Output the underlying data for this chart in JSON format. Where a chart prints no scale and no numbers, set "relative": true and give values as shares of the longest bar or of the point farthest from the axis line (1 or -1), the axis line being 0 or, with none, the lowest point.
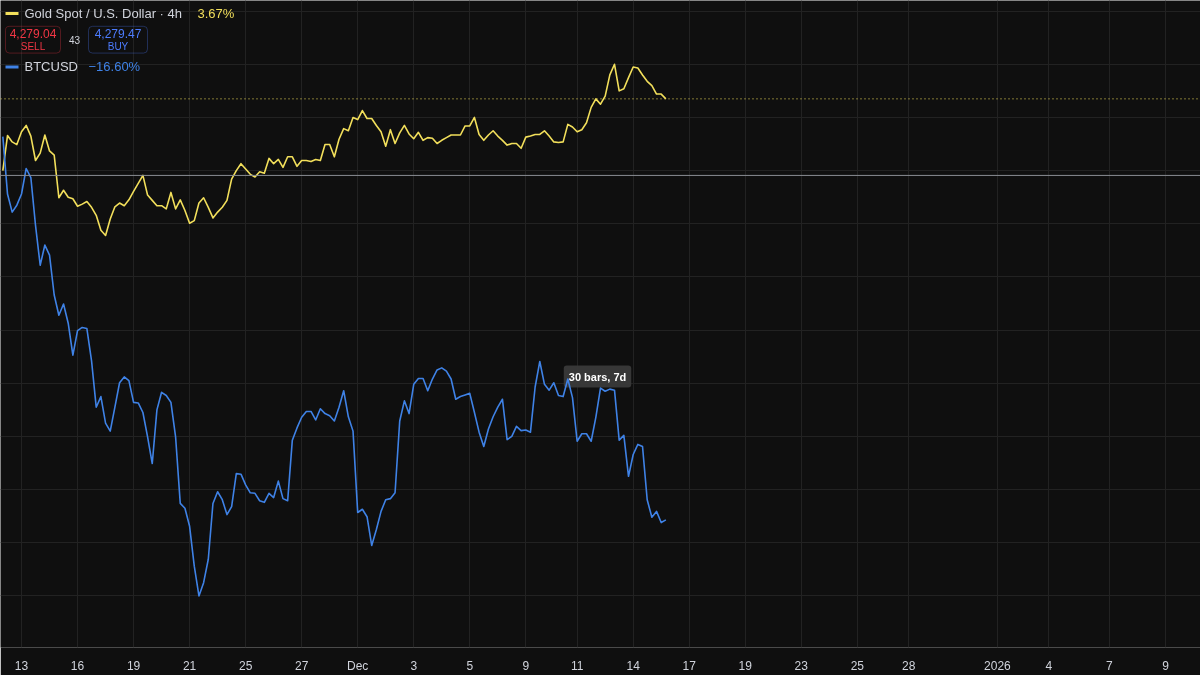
{
  "chart_data": {
    "type": "line",
    "relative": true,
    "grid": true,
    "legend": "top left",
    "categories": [
      null,
      null,
      null,
      null,
      "13",
      null,
      null,
      null,
      null,
      null,
      null,
      null,
      null,
      null,
      null,
      null,
      "16",
      null,
      null,
      null,
      null,
      null,
      null,
      null,
      null,
      null,
      null,
      null,
      "19",
      null,
      null,
      null,
      null,
      null,
      null,
      null,
      null,
      null,
      null,
      null,
      "21",
      null,
      null,
      null,
      null,
      null,
      null,
      null,
      null,
      null,
      null,
      null,
      "25",
      null,
      null,
      null,
      null,
      null,
      null,
      null,
      null,
      null,
      null,
      null,
      "27",
      null,
      null,
      null,
      null,
      null,
      null,
      null,
      null,
      null,
      null,
      null,
      "Dec",
      null,
      null,
      null,
      null,
      null,
      null,
      null,
      null,
      null,
      null,
      null,
      "3",
      null,
      null,
      null,
      null,
      null,
      null,
      null,
      null,
      null,
      null,
      null,
      "5",
      null,
      null,
      null,
      null,
      null,
      null,
      null,
      null,
      null,
      null,
      null,
      "9",
      null,
      null,
      null,
      null,
      null,
      null,
      null,
      null,
      null,
      null,
      "11",
      null,
      null,
      null,
      null,
      null,
      null,
      null,
      null,
      null,
      null,
      null,
      "14",
      null,
      null,
      null,
      null,
      null,
      null,
      null,
      null,
      null,
      null,
      null,
      "17",
      null,
      null,
      null,
      null,
      null,
      null,
      null,
      null,
      null,
      null,
      null,
      "19",
      null,
      null,
      null,
      null,
      null,
      null,
      null,
      null,
      null,
      null,
      null,
      "23",
      null,
      null,
      null,
      null,
      null,
      null,
      null,
      null,
      null,
      null,
      null,
      "25",
      null,
      null,
      null,
      null,
      null,
      null,
      null,
      null,
      null,
      null,
      "28",
      null,
      null,
      null,
      null,
      null,
      null,
      null,
      null,
      null,
      null,
      null,
      null,
      null,
      null,
      null,
      null,
      null,
      null,
      "2026",
      null,
      null,
      null,
      null,
      null,
      null,
      null,
      null,
      null,
      null,
      "4",
      null,
      null,
      null,
      null,
      null,
      null,
      null,
      null,
      null,
      null,
      null,
      null,
      "7",
      null,
      null,
      null,
      null,
      null,
      null,
      null,
      null,
      null,
      null,
      null,
      "9",
      null,
      null,
      null,
      null,
      null,
      null,
      null
    ],
    "series": [
      {
        "name": "Gold Spot / U.S. Dollar · 4h",
        "color": "#f2df5b",
        "values": [
          0.8,
          0.866,
          0.854,
          0.849,
          0.873,
          0.885,
          0.865,
          0.819,
          0.833,
          0.867,
          0.837,
          0.829,
          0.749,
          0.763,
          0.75,
          0.747,
          0.733,
          0.737,
          0.742,
          0.731,
          0.716,
          0.688,
          0.678,
          0.709,
          0.732,
          0.739,
          0.734,
          0.745,
          0.761,
          0.776,
          0.791,
          0.754,
          0.744,
          0.734,
          0.734,
          0.728,
          0.759,
          0.728,
          0.745,
          0.725,
          0.701,
          0.706,
          0.739,
          0.749,
          0.731,
          0.711,
          0.722,
          0.731,
          0.744,
          0.784,
          0.8,
          0.813,
          0.803,
          0.793,
          0.788,
          0.798,
          0.795,
          0.823,
          0.813,
          0.821,
          0.806,
          0.826,
          0.826,
          0.808,
          0.819,
          0.819,
          0.817,
          0.821,
          0.819,
          0.849,
          0.849,
          0.826,
          0.859,
          0.879,
          0.875,
          0.9,
          0.896,
          0.913,
          0.898,
          0.898,
          0.885,
          0.873,
          0.846,
          0.877,
          0.851,
          0.871,
          0.885,
          0.869,
          0.86,
          0.872,
          0.857,
          0.862,
          0.861,
          0.851,
          0.857,
          0.862,
          0.867,
          0.867,
          0.867,
          0.884,
          0.884,
          0.9,
          0.868,
          0.857,
          0.867,
          0.875,
          0.865,
          0.857,
          0.848,
          0.851,
          0.851,
          0.842,
          0.863,
          0.865,
          0.868,
          0.868,
          0.875,
          0.865,
          0.854,
          0.853,
          0.854,
          0.887,
          0.882,
          0.873,
          0.877,
          0.89,
          0.919,
          0.935,
          0.925,
          0.94,
          0.98,
          1.0,
          0.95,
          0.954,
          0.975,
          0.995,
          0.993,
          0.98,
          0.968,
          0.96,
          0.944,
          0.944,
          0.935,
          null,
          null,
          null,
          null,
          null,
          null,
          null,
          null,
          null,
          null,
          null,
          null,
          null,
          null,
          null,
          null,
          null,
          null,
          null,
          null,
          null,
          null,
          null,
          null,
          null,
          null,
          null,
          null,
          null,
          null,
          null,
          null,
          null,
          null,
          null,
          null,
          null,
          null,
          null,
          null,
          null,
          null,
          null,
          null,
          null,
          null,
          null,
          null,
          null,
          null,
          null,
          null,
          null,
          null,
          null,
          null,
          null,
          null,
          null,
          null,
          null,
          null,
          null,
          null,
          null,
          null,
          null,
          null,
          null,
          null,
          null,
          null,
          null,
          null,
          null,
          null,
          null,
          null,
          null,
          null,
          null,
          null,
          null,
          null,
          null,
          null,
          null,
          null,
          null,
          null,
          null,
          null,
          null,
          null,
          null,
          null,
          null,
          null,
          null,
          null,
          null,
          null,
          null,
          null,
          null,
          null,
          null,
          null,
          null,
          null,
          null,
          null,
          null,
          null
        ]
      },
      {
        "name": "BTCUSD",
        "color": "#3f82e6",
        "values": [
          0.864,
          0.756,
          0.722,
          0.735,
          0.756,
          0.804,
          0.787,
          0.697,
          0.622,
          0.66,
          0.641,
          0.566,
          0.528,
          0.549,
          0.513,
          0.453,
          0.499,
          0.505,
          0.503,
          0.442,
          0.355,
          0.375,
          0.325,
          0.31,
          0.355,
          0.401,
          0.412,
          0.405,
          0.364,
          0.363,
          0.345,
          0.299,
          0.249,
          0.35,
          0.383,
          0.377,
          0.364,
          0.299,
          0.174,
          0.165,
          0.131,
          0.056,
          0,
          0.025,
          0.069,
          0.174,
          0.196,
          0.181,
          0.153,
          0.168,
          0.23,
          0.229,
          0.209,
          0.194,
          0.193,
          0.179,
          0.176,
          0.193,
          0.185,
          0.216,
          0.183,
          0.179,
          0.293,
          0.316,
          0.336,
          0.347,
          0.347,
          0.331,
          0.352,
          0.343,
          0.339,
          0.329,
          0.355,
          0.386,
          0.337,
          0.31,
          0.157,
          0.163,
          0.149,
          0.095,
          0.125,
          0.159,
          0.181,
          0.183,
          0.194,
          0.329,
          0.367,
          0.343,
          0.398,
          0.409,
          0.409,
          0.386,
          0.408,
          0.425,
          0.429,
          0.423,
          0.408,
          0.37,
          0.375,
          0.378,
          0.381,
          0.345,
          0.308,
          0.281,
          0.314,
          0.337,
          0.355,
          0.37,
          0.294,
          0.3,
          0.319,
          0.311,
          0.312,
          0.308,
          0.393,
          0.441,
          0.398,
          0.387,
          0.401,
          0.377,
          0.375,
          0.408,
          0.373,
          0.291,
          0.305,
          0.305,
          0.291,
          0.336,
          0.391,
          0.385,
          0.389,
          0.387,
          0.293,
          0.302,
          0.225,
          0.266,
          0.285,
          0.281,
          0.181,
          0.148,
          0.159,
          0.138,
          0.143,
          null,
          null,
          null,
          null,
          null,
          null,
          null,
          null,
          null,
          null,
          null,
          null,
          null,
          null,
          null,
          null,
          null,
          null,
          null,
          null,
          null,
          null,
          null,
          null,
          null,
          null,
          null,
          null,
          null,
          null,
          null,
          null,
          null,
          null,
          null,
          null,
          null,
          null,
          null,
          null,
          null,
          null,
          null,
          null,
          null,
          null,
          null,
          null,
          null,
          null,
          null,
          null,
          null,
          null,
          null,
          null,
          null,
          null,
          null,
          null,
          null,
          null,
          null,
          null,
          null,
          null,
          null,
          null,
          null,
          null,
          null,
          null,
          null,
          null,
          null,
          null,
          null,
          null,
          null,
          null,
          null,
          null,
          null,
          null,
          null,
          null,
          null,
          null,
          null,
          null,
          null,
          null,
          null,
          null,
          null,
          null,
          null,
          null,
          null,
          null,
          null,
          null,
          null,
          null,
          null,
          null,
          null,
          null,
          null,
          null,
          null,
          null,
          null,
          null
        ]
      }
    ],
    "ref_lines": [
      {
        "axis": "y",
        "value": 0.935,
        "color": "#f2df5b",
        "line_style": "dotted"
      },
      {
        "axis": "y",
        "value": 0.791,
        "color": "#8a8d94",
        "line_style": "solid"
      }
    ],
    "annotations": [
      "3.67%",
      "4,279.04",
      "SELL",
      "43",
      "4,279.47",
      "BUY",
      "−16.60%",
      "30 bars, 7d"
    ]
  }
}
